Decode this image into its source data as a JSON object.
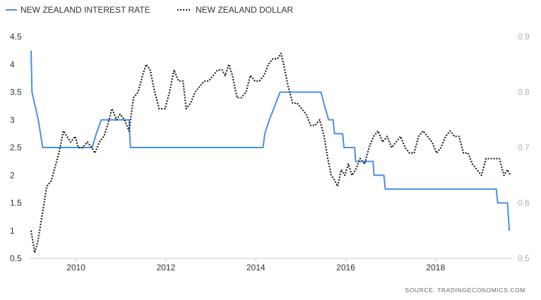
{
  "chart_data": {
    "type": "line",
    "legend_position": "top-left",
    "grid": false,
    "source": "SOURCE:   TRADINGECONOMICS.COM",
    "x_range": [
      2009.0,
      2019.7
    ],
    "x_ticks": [
      "2010",
      "2012",
      "2014",
      "2016",
      "2018"
    ],
    "x_tick_values": [
      2010,
      2012,
      2014,
      2016,
      2018
    ],
    "y_left": {
      "range": [
        0.5,
        4.5
      ],
      "ticks": [
        "0.5",
        "1",
        "1.5",
        "2",
        "2.5",
        "3",
        "3.5",
        "4",
        "4.5"
      ],
      "tick_values": [
        0.5,
        1,
        1.5,
        2,
        2.5,
        3,
        3.5,
        4,
        4.5
      ]
    },
    "y_right": {
      "range": [
        0.5,
        0.9
      ],
      "ticks": [
        "0.5",
        "0.6",
        "0.7",
        "0.8",
        "0.9"
      ],
      "tick_values": [
        0.5,
        0.6,
        0.7,
        0.8,
        0.9
      ]
    },
    "series": [
      {
        "name": "NEW ZEALAND INTEREST RATE",
        "axis": "left",
        "color": "#4a90e2",
        "style": "solid",
        "points": [
          [
            2009.0,
            4.25
          ],
          [
            2009.02,
            3.5
          ],
          [
            2009.16,
            3.0
          ],
          [
            2009.26,
            2.5
          ],
          [
            2010.36,
            2.5
          ],
          [
            2010.45,
            2.75
          ],
          [
            2010.56,
            3.0
          ],
          [
            2011.18,
            3.0
          ],
          [
            2011.21,
            2.5
          ],
          [
            2014.16,
            2.5
          ],
          [
            2014.2,
            2.75
          ],
          [
            2014.3,
            3.0
          ],
          [
            2014.42,
            3.25
          ],
          [
            2014.54,
            3.5
          ],
          [
            2015.45,
            3.5
          ],
          [
            2015.53,
            3.25
          ],
          [
            2015.62,
            3.0
          ],
          [
            2015.72,
            3.0
          ],
          [
            2015.75,
            2.75
          ],
          [
            2015.93,
            2.75
          ],
          [
            2015.96,
            2.5
          ],
          [
            2016.2,
            2.5
          ],
          [
            2016.22,
            2.25
          ],
          [
            2016.61,
            2.25
          ],
          [
            2016.63,
            2.0
          ],
          [
            2016.85,
            2.0
          ],
          [
            2016.88,
            1.75
          ],
          [
            2019.35,
            1.75
          ],
          [
            2019.38,
            1.5
          ],
          [
            2019.6,
            1.5
          ],
          [
            2019.64,
            1.0
          ]
        ]
      },
      {
        "name": "NEW ZEALAND DOLLAR",
        "axis": "right",
        "color": "#222222",
        "style": "dotted",
        "points": [
          [
            2009.0,
            0.55
          ],
          [
            2009.08,
            0.51
          ],
          [
            2009.15,
            0.53
          ],
          [
            2009.25,
            0.58
          ],
          [
            2009.35,
            0.63
          ],
          [
            2009.45,
            0.64
          ],
          [
            2009.55,
            0.67
          ],
          [
            2009.62,
            0.69
          ],
          [
            2009.72,
            0.73
          ],
          [
            2009.8,
            0.72
          ],
          [
            2009.88,
            0.71
          ],
          [
            2009.98,
            0.72
          ],
          [
            2010.05,
            0.7
          ],
          [
            2010.15,
            0.7
          ],
          [
            2010.25,
            0.71
          ],
          [
            2010.35,
            0.7
          ],
          [
            2010.42,
            0.69
          ],
          [
            2010.52,
            0.71
          ],
          [
            2010.62,
            0.72
          ],
          [
            2010.7,
            0.74
          ],
          [
            2010.8,
            0.77
          ],
          [
            2010.9,
            0.75
          ],
          [
            2010.98,
            0.76
          ],
          [
            2011.08,
            0.75
          ],
          [
            2011.18,
            0.73
          ],
          [
            2011.28,
            0.79
          ],
          [
            2011.38,
            0.8
          ],
          [
            2011.48,
            0.83
          ],
          [
            2011.56,
            0.85
          ],
          [
            2011.65,
            0.84
          ],
          [
            2011.75,
            0.8
          ],
          [
            2011.85,
            0.77
          ],
          [
            2011.98,
            0.77
          ],
          [
            2012.08,
            0.8
          ],
          [
            2012.18,
            0.84
          ],
          [
            2012.28,
            0.82
          ],
          [
            2012.38,
            0.82
          ],
          [
            2012.45,
            0.77
          ],
          [
            2012.55,
            0.78
          ],
          [
            2012.65,
            0.8
          ],
          [
            2012.75,
            0.81
          ],
          [
            2012.85,
            0.82
          ],
          [
            2012.95,
            0.82
          ],
          [
            2013.05,
            0.83
          ],
          [
            2013.15,
            0.84
          ],
          [
            2013.25,
            0.84
          ],
          [
            2013.32,
            0.83
          ],
          [
            2013.4,
            0.85
          ],
          [
            2013.48,
            0.83
          ],
          [
            2013.58,
            0.79
          ],
          [
            2013.68,
            0.79
          ],
          [
            2013.78,
            0.8
          ],
          [
            2013.88,
            0.83
          ],
          [
            2013.98,
            0.82
          ],
          [
            2014.08,
            0.82
          ],
          [
            2014.18,
            0.83
          ],
          [
            2014.28,
            0.85
          ],
          [
            2014.38,
            0.86
          ],
          [
            2014.48,
            0.86
          ],
          [
            2014.56,
            0.87
          ],
          [
            2014.62,
            0.85
          ],
          [
            2014.72,
            0.81
          ],
          [
            2014.82,
            0.78
          ],
          [
            2014.92,
            0.78
          ],
          [
            2015.02,
            0.77
          ],
          [
            2015.12,
            0.76
          ],
          [
            2015.22,
            0.74
          ],
          [
            2015.32,
            0.74
          ],
          [
            2015.42,
            0.75
          ],
          [
            2015.52,
            0.72
          ],
          [
            2015.6,
            0.68
          ],
          [
            2015.68,
            0.65
          ],
          [
            2015.76,
            0.64
          ],
          [
            2015.82,
            0.63
          ],
          [
            2015.9,
            0.66
          ],
          [
            2015.98,
            0.65
          ],
          [
            2016.06,
            0.67
          ],
          [
            2016.14,
            0.65
          ],
          [
            2016.22,
            0.66
          ],
          [
            2016.32,
            0.68
          ],
          [
            2016.42,
            0.67
          ],
          [
            2016.52,
            0.7
          ],
          [
            2016.62,
            0.72
          ],
          [
            2016.72,
            0.73
          ],
          [
            2016.82,
            0.71
          ],
          [
            2016.92,
            0.72
          ],
          [
            2017.02,
            0.7
          ],
          [
            2017.12,
            0.71
          ],
          [
            2017.22,
            0.72
          ],
          [
            2017.32,
            0.7
          ],
          [
            2017.42,
            0.69
          ],
          [
            2017.52,
            0.69
          ],
          [
            2017.62,
            0.72
          ],
          [
            2017.72,
            0.73
          ],
          [
            2017.82,
            0.72
          ],
          [
            2017.92,
            0.71
          ],
          [
            2018.02,
            0.69
          ],
          [
            2018.12,
            0.7
          ],
          [
            2018.22,
            0.72
          ],
          [
            2018.32,
            0.73
          ],
          [
            2018.42,
            0.72
          ],
          [
            2018.52,
            0.72
          ],
          [
            2018.62,
            0.69
          ],
          [
            2018.72,
            0.69
          ],
          [
            2018.82,
            0.67
          ],
          [
            2018.92,
            0.66
          ],
          [
            2019.02,
            0.65
          ],
          [
            2019.12,
            0.68
          ],
          [
            2019.22,
            0.68
          ],
          [
            2019.32,
            0.68
          ],
          [
            2019.42,
            0.68
          ],
          [
            2019.52,
            0.65
          ],
          [
            2019.6,
            0.66
          ],
          [
            2019.66,
            0.65
          ]
        ]
      }
    ]
  }
}
